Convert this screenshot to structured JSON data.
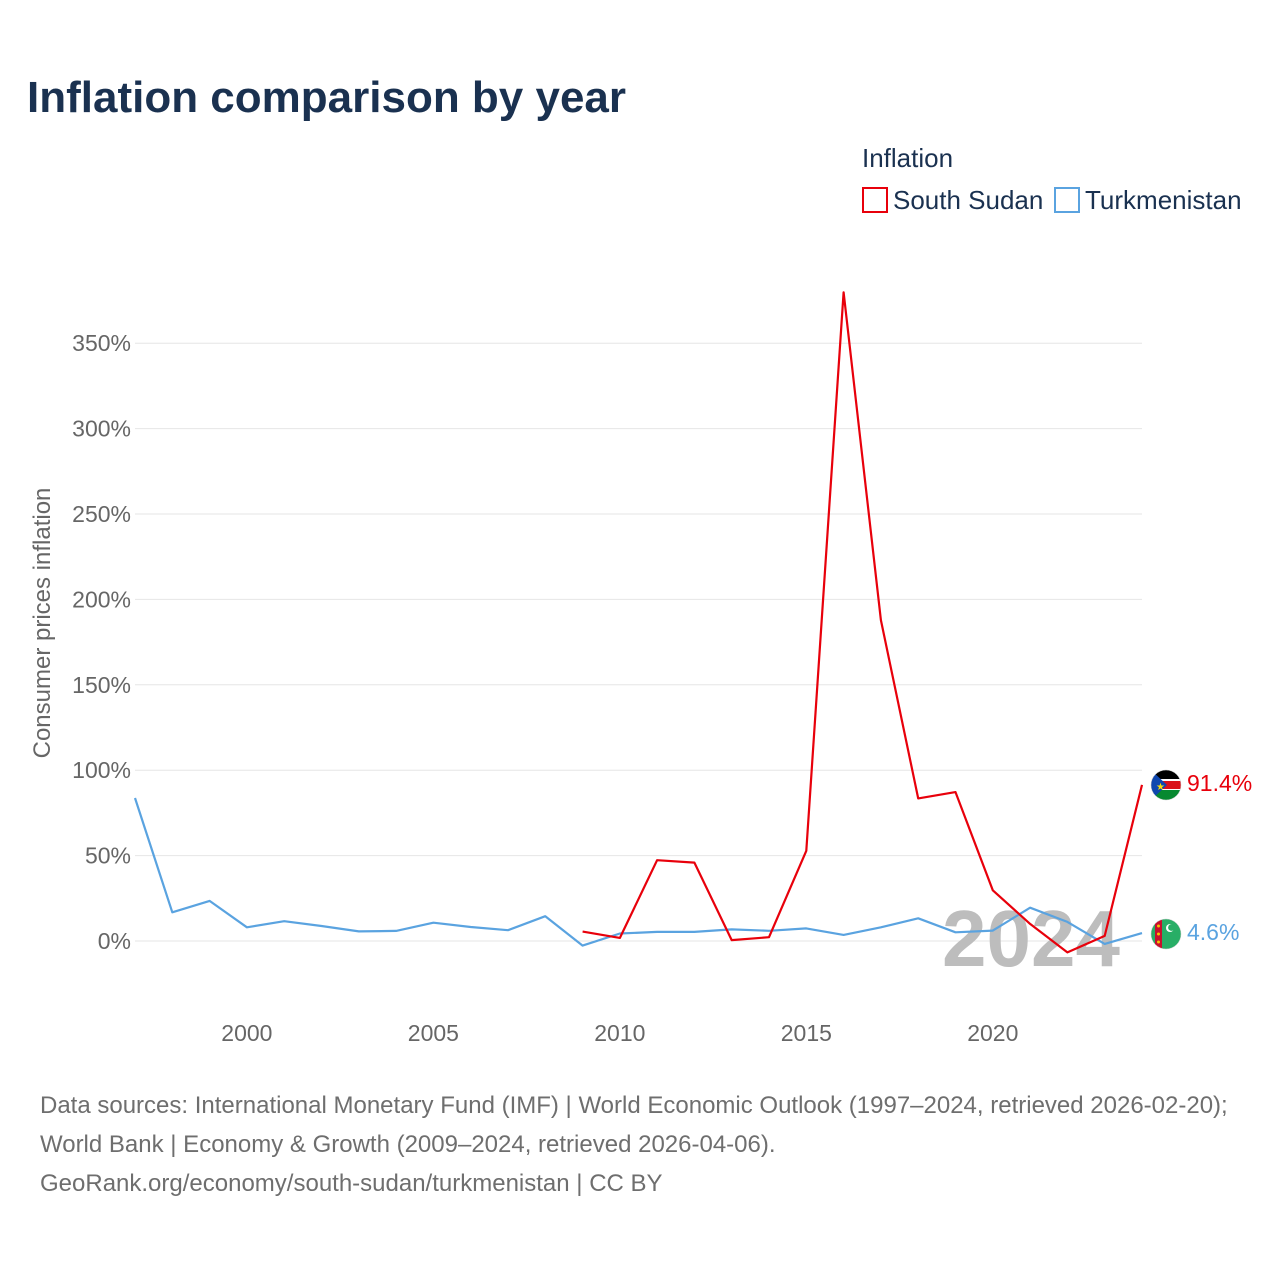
{
  "title": "Inflation comparison by year",
  "legend": {
    "title": "Inflation",
    "items": [
      {
        "label": "South Sudan",
        "color": "#e8000b"
      },
      {
        "label": "Turkmenistan",
        "color": "#5aa3e0"
      }
    ]
  },
  "ylabel": "Consumer prices inflation",
  "watermark_year": "2024",
  "end_labels": {
    "south_sudan": "91.4%",
    "turkmenistan": "4.6%"
  },
  "icons": {
    "south_sudan": "south-sudan-flag-icon",
    "turkmenistan": "turkmenistan-flag-icon"
  },
  "footer": {
    "sources": "Data sources: International Monetary Fund (IMF) | World Economic Outlook (1997–2024, retrieved 2026-02-20); World Bank | Economy & Growth (2009–2024, retrieved 2026-04-06).",
    "credit": "GeoRank.org/economy/south-sudan/turkmenistan | CC BY"
  },
  "chart_data": {
    "type": "line",
    "title": "Inflation comparison by year",
    "ylabel": "Consumer prices inflation",
    "xlabel": "",
    "xlim": [
      1997,
      2024
    ],
    "ylim": [
      -40,
      380
    ],
    "x_ticks": [
      2000,
      2005,
      2010,
      2015,
      2020
    ],
    "y_ticks": [
      0,
      50,
      100,
      150,
      200,
      250,
      300,
      350
    ],
    "y_tick_labels": [
      "0%",
      "50%",
      "100%",
      "150%",
      "200%",
      "250%",
      "300%",
      "350%"
    ],
    "grid": true,
    "legend_position": "top-right",
    "series": [
      {
        "name": "South Sudan",
        "color": "#e8000b",
        "points": [
          [
            2009,
            5.5
          ],
          [
            2010,
            1.8
          ],
          [
            2011,
            47.3
          ],
          [
            2012,
            45.9
          ],
          [
            2013,
            0.5
          ],
          [
            2014,
            2.2
          ],
          [
            2015,
            52.8
          ],
          [
            2016,
            379.8
          ],
          [
            2017,
            187.9
          ],
          [
            2018,
            83.5
          ],
          [
            2019,
            87.2
          ],
          [
            2020,
            29.7
          ],
          [
            2021,
            10.0
          ],
          [
            2022,
            -6.7
          ],
          [
            2023,
            3.0
          ],
          [
            2024,
            91.4
          ]
        ]
      },
      {
        "name": "Turkmenistan",
        "color": "#5aa3e0",
        "points": [
          [
            1997,
            83.7
          ],
          [
            1998,
            16.8
          ],
          [
            1999,
            23.5
          ],
          [
            2000,
            8.0
          ],
          [
            2001,
            11.6
          ],
          [
            2002,
            8.8
          ],
          [
            2003,
            5.6
          ],
          [
            2004,
            5.9
          ],
          [
            2005,
            10.7
          ],
          [
            2006,
            8.2
          ],
          [
            2007,
            6.3
          ],
          [
            2008,
            14.5
          ],
          [
            2009,
            -2.7
          ],
          [
            2010,
            4.4
          ],
          [
            2011,
            5.3
          ],
          [
            2012,
            5.3
          ],
          [
            2013,
            6.8
          ],
          [
            2014,
            6.0
          ],
          [
            2015,
            7.4
          ],
          [
            2016,
            3.6
          ],
          [
            2017,
            8.0
          ],
          [
            2018,
            13.3
          ],
          [
            2019,
            5.1
          ],
          [
            2020,
            6.1
          ],
          [
            2021,
            19.5
          ],
          [
            2022,
            11.2
          ],
          [
            2023,
            -1.7
          ],
          [
            2024,
            4.6
          ]
        ]
      }
    ]
  }
}
